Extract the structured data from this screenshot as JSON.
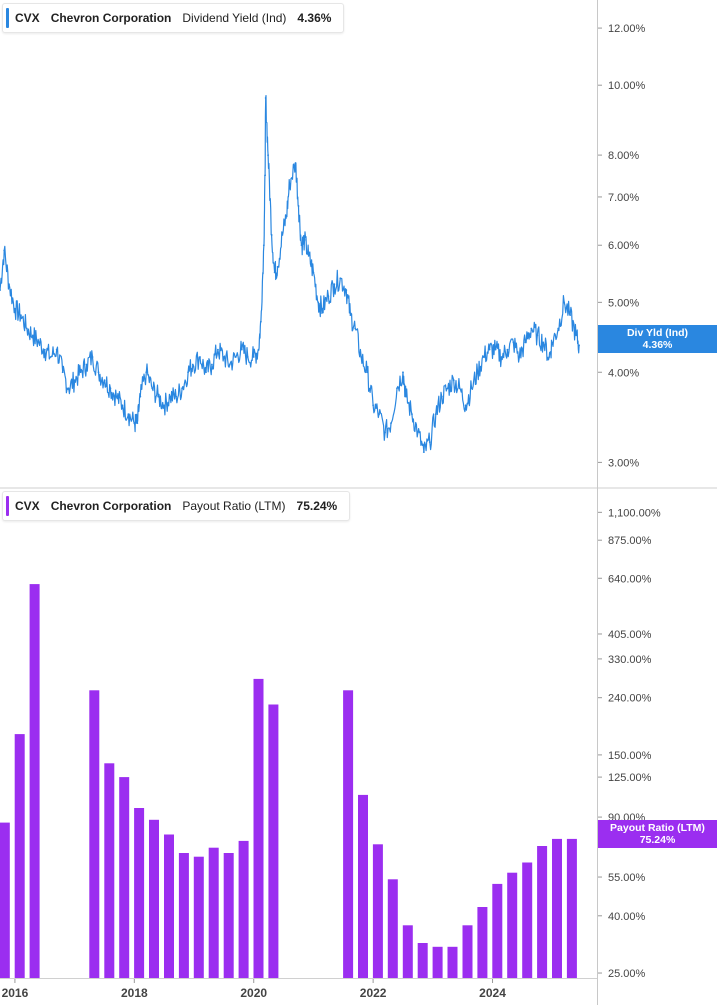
{
  "colors": {
    "yield": "#2a87e0",
    "payout": "#9b2ef0",
    "axis": "#999999",
    "text": "#444444"
  },
  "top_panel": {
    "ticker": "CVX",
    "company": "Chevron Corporation",
    "metric": "Dividend Yield (Ind)",
    "value": "4.36%",
    "tag_line1": "Div Yld (Ind)",
    "tag_line2": "4.36%"
  },
  "bottom_panel": {
    "ticker": "CVX",
    "company": "Chevron Corporation",
    "metric": "Payout Ratio (LTM)",
    "value": "75.24%",
    "tag_line1": "Payout Ratio (LTM)",
    "tag_line2": "75.24%"
  },
  "chart_data": [
    {
      "type": "line",
      "title": "CVX Chevron Corporation Dividend Yield (Ind) 4.36%",
      "y_scale": "log",
      "ylim": [
        2.8,
        13
      ],
      "y_ticks": [
        "12.00%",
        "10.00%",
        "8.00%",
        "7.00%",
        "6.00%",
        "5.00%",
        "4.00%",
        "3.00%"
      ],
      "y_tick_values": [
        12,
        10,
        8,
        7,
        6,
        5,
        4,
        3
      ],
      "xlim": [
        2015.75,
        2025.75
      ],
      "x_ticks": [
        "2016",
        "2018",
        "2020",
        "2022",
        "2024"
      ],
      "x_tick_values": [
        2016,
        2018,
        2020,
        2022,
        2024
      ],
      "series": [
        {
          "x": [
            2015.75,
            2015.82,
            2015.9,
            2016.0,
            2016.1,
            2016.2,
            2016.3,
            2016.4,
            2016.5,
            2016.6,
            2016.7,
            2016.8,
            2016.9,
            2017.0,
            2017.1,
            2017.2,
            2017.3,
            2017.4,
            2017.5,
            2017.6,
            2017.7,
            2017.8,
            2017.9,
            2018.0,
            2018.05,
            2018.1,
            2018.2,
            2018.3,
            2018.4,
            2018.5,
            2018.6,
            2018.7,
            2018.8,
            2018.9,
            2018.98,
            2019.1,
            2019.2,
            2019.3,
            2019.4,
            2019.5,
            2019.6,
            2019.7,
            2019.8,
            2019.9,
            2020.0,
            2020.08,
            2020.12,
            2020.17,
            2020.19,
            2020.2,
            2020.24,
            2020.3,
            2020.35,
            2020.4,
            2020.48,
            2020.55,
            2020.6,
            2020.7,
            2020.75,
            2020.8,
            2020.85,
            2020.92,
            2021.0,
            2021.08,
            2021.15,
            2021.25,
            2021.35,
            2021.45,
            2021.55,
            2021.62,
            2021.7,
            2021.8,
            2021.9,
            2022.0,
            2022.1,
            2022.2,
            2022.3,
            2022.4,
            2022.5,
            2022.55,
            2022.65,
            2022.75,
            2022.85,
            2022.95,
            2023.05,
            2023.15,
            2023.25,
            2023.35,
            2023.45,
            2023.55,
            2023.65,
            2023.75,
            2023.85,
            2023.95,
            2024.05,
            2024.15,
            2024.25,
            2024.35,
            2024.45,
            2024.55,
            2024.65,
            2024.75,
            2024.85,
            2024.95,
            2025.0,
            2025.1,
            2025.2,
            2025.3,
            2025.4,
            2025.45
          ],
          "values": [
            5.2,
            5.9,
            5.3,
            4.9,
            4.8,
            4.6,
            4.5,
            4.4,
            4.3,
            4.2,
            4.3,
            4.0,
            3.8,
            3.9,
            4.0,
            4.1,
            4.2,
            4.0,
            3.9,
            3.8,
            3.7,
            3.6,
            3.5,
            3.4,
            3.4,
            3.7,
            4.0,
            3.8,
            3.7,
            3.6,
            3.7,
            3.7,
            3.8,
            4.0,
            4.1,
            4.2,
            4.0,
            4.1,
            4.3,
            4.2,
            4.1,
            4.2,
            4.3,
            4.2,
            4.2,
            4.3,
            4.7,
            6.0,
            7.5,
            9.6,
            8.0,
            6.2,
            5.5,
            5.6,
            6.2,
            6.6,
            7.3,
            7.8,
            6.8,
            6.0,
            6.1,
            5.8,
            5.5,
            5.0,
            4.9,
            5.1,
            5.3,
            5.4,
            5.2,
            4.8,
            4.6,
            4.2,
            4.0,
            3.6,
            3.5,
            3.3,
            3.4,
            3.8,
            4.0,
            3.7,
            3.5,
            3.3,
            3.1,
            3.2,
            3.5,
            3.7,
            3.8,
            3.9,
            3.8,
            3.6,
            3.8,
            4.0,
            4.2,
            4.3,
            4.3,
            4.2,
            4.3,
            4.4,
            4.2,
            4.4,
            4.6,
            4.5,
            4.4,
            4.2,
            4.4,
            4.6,
            5.0,
            4.8,
            4.5,
            4.36
          ]
        }
      ]
    },
    {
      "type": "bar",
      "title": "CVX Chevron Corporation Payout Ratio (LTM) 75.24%",
      "y_scale": "log",
      "ylim": [
        24,
        1300
      ],
      "y_ticks": [
        "1,100.00%",
        "875.00%",
        "640.00%",
        "405.00%",
        "330.00%",
        "240.00%",
        "150.00%",
        "125.00%",
        "90.00%",
        "55.00%",
        "40.00%",
        "25.00%"
      ],
      "y_tick_values": [
        1100,
        875,
        640,
        405,
        330,
        240,
        150,
        125,
        90,
        55,
        40,
        25
      ],
      "xlim": [
        2015.75,
        2025.75
      ],
      "x_ticks": [
        "2016",
        "2018",
        "2020",
        "2022",
        "2024"
      ],
      "x_tick_values": [
        2016,
        2018,
        2020,
        2022,
        2024
      ],
      "series": [
        {
          "x": [
            2015.83,
            2016.08,
            2016.33,
            2017.33,
            2017.58,
            2017.83,
            2018.08,
            2018.33,
            2018.58,
            2018.83,
            2019.08,
            2019.33,
            2019.58,
            2019.83,
            2020.08,
            2020.33,
            2021.58,
            2021.83,
            2022.08,
            2022.33,
            2022.58,
            2022.83,
            2023.08,
            2023.33,
            2023.58,
            2023.83,
            2024.08,
            2024.33,
            2024.58,
            2024.83,
            2025.08,
            2025.33
          ],
          "values": [
            86,
            178,
            610,
            255,
            140,
            125,
            97,
            88,
            78,
            67,
            65,
            70,
            67,
            74,
            280,
            227,
            255,
            108,
            72,
            54,
            37,
            32,
            31,
            31,
            37,
            43,
            52,
            57,
            62,
            71,
            75.24,
            75.24
          ]
        }
      ]
    }
  ]
}
